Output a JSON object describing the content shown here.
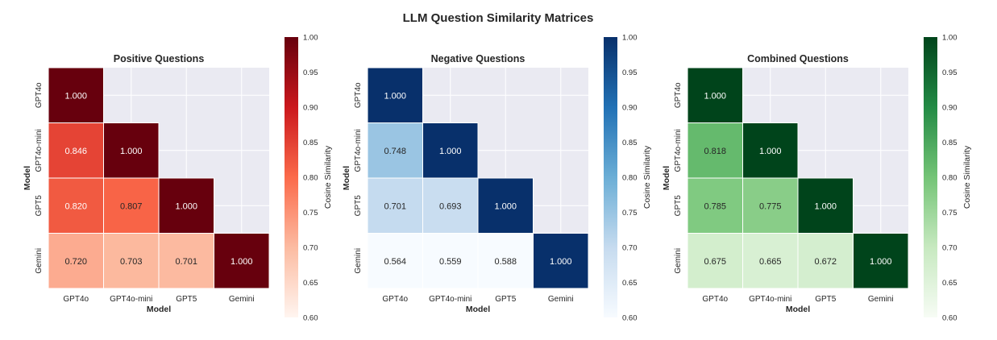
{
  "title": "LLM Question Similarity Matrices",
  "chart_data": [
    {
      "type": "heatmap",
      "title": "Positive Questions",
      "xlabel": "Model",
      "ylabel": "Model",
      "categories": [
        "GPT4o",
        "GPT4o-mini",
        "GPT5",
        "Gemini"
      ],
      "values": [
        [
          1.0,
          null,
          null,
          null
        ],
        [
          0.846,
          1.0,
          null,
          null
        ],
        [
          0.82,
          0.807,
          1.0,
          null
        ],
        [
          0.72,
          0.703,
          0.701,
          1.0
        ]
      ],
      "colormap": "Reds",
      "colors": [
        "#fff5f0",
        "#fcbba1",
        "#fb6a4a",
        "#cb181d",
        "#67000d"
      ],
      "colorbar": {
        "label": "Cosine Similarity",
        "range": [
          0.6,
          1.0
        ],
        "ticks": [
          "0.60",
          "0.65",
          "0.70",
          "0.75",
          "0.80",
          "0.85",
          "0.90",
          "0.95",
          "1.00"
        ]
      }
    },
    {
      "type": "heatmap",
      "title": "Negative Questions",
      "xlabel": "Model",
      "ylabel": "Model",
      "categories": [
        "GPT4o",
        "GPT4o-mini",
        "GPT5",
        "Gemini"
      ],
      "values": [
        [
          1.0,
          null,
          null,
          null
        ],
        [
          0.748,
          1.0,
          null,
          null
        ],
        [
          0.701,
          0.693,
          1.0,
          null
        ],
        [
          0.564,
          0.559,
          0.588,
          1.0
        ]
      ],
      "colormap": "Blues",
      "colors": [
        "#f7fbff",
        "#c6dbef",
        "#6baed6",
        "#2171b5",
        "#08306b"
      ],
      "colorbar": {
        "label": "Cosine Similarity",
        "range": [
          0.6,
          1.0
        ],
        "ticks": [
          "0.60",
          "0.65",
          "0.70",
          "0.75",
          "0.80",
          "0.85",
          "0.90",
          "0.95",
          "1.00"
        ]
      }
    },
    {
      "type": "heatmap",
      "title": "Combined Questions",
      "xlabel": "Model",
      "ylabel": "Model",
      "categories": [
        "GPT4o",
        "GPT4o-mini",
        "GPT5",
        "Gemini"
      ],
      "values": [
        [
          1.0,
          null,
          null,
          null
        ],
        [
          0.818,
          1.0,
          null,
          null
        ],
        [
          0.785,
          0.775,
          1.0,
          null
        ],
        [
          0.675,
          0.665,
          0.672,
          1.0
        ]
      ],
      "colormap": "Greens",
      "colors": [
        "#f7fcf5",
        "#c7e9c0",
        "#74c476",
        "#238b45",
        "#00441b"
      ],
      "colorbar": {
        "label": "Cosine Similarity",
        "range": [
          0.6,
          1.0
        ],
        "ticks": [
          "0.60",
          "0.65",
          "0.70",
          "0.75",
          "0.80",
          "0.85",
          "0.90",
          "0.95",
          "1.00"
        ]
      }
    }
  ]
}
